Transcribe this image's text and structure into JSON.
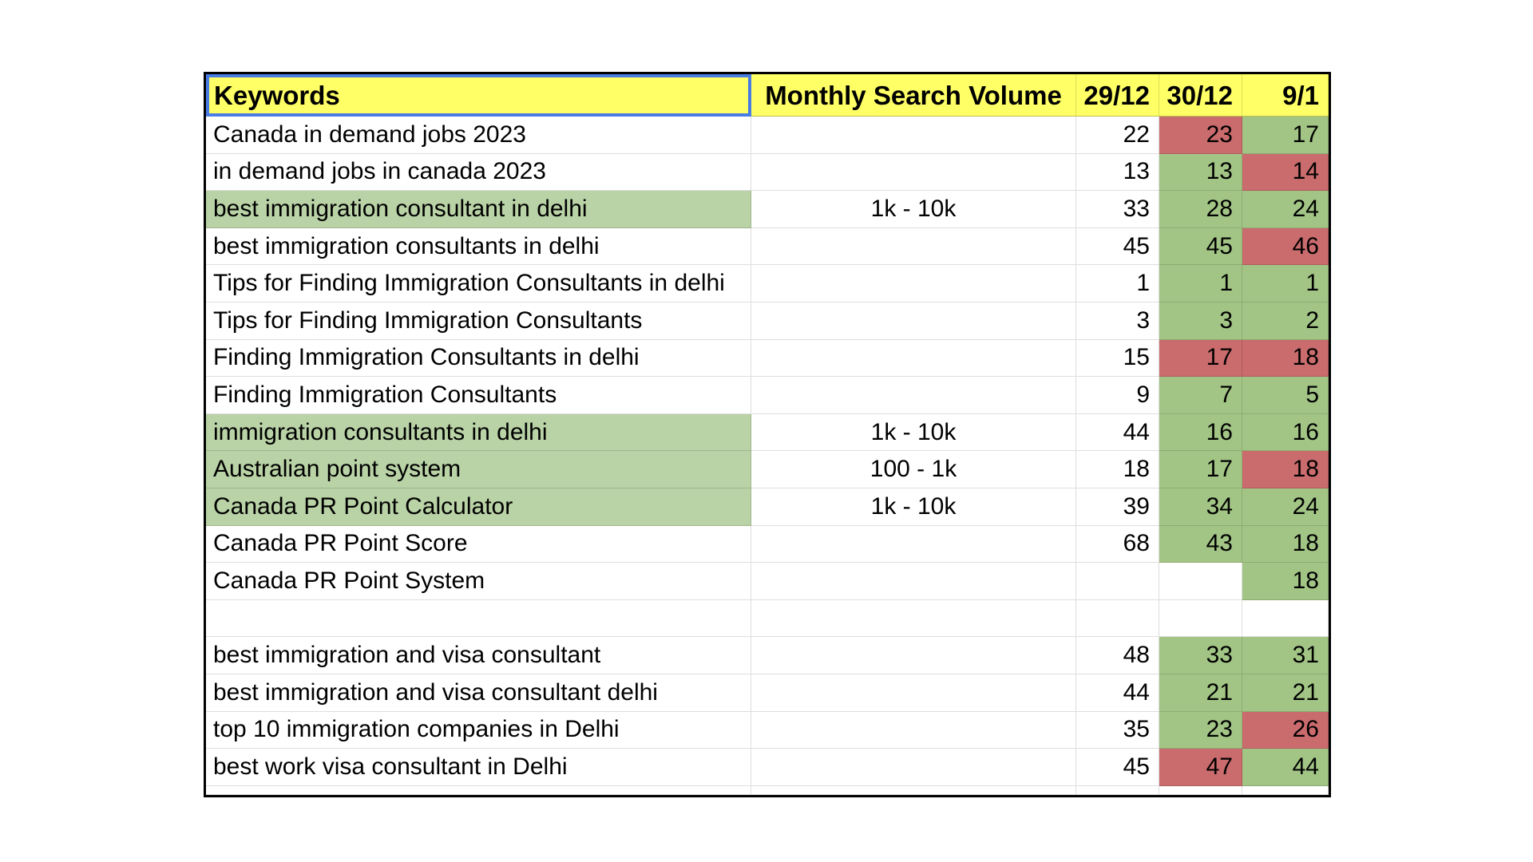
{
  "colors": {
    "header_bg": "#ffff66",
    "selection_border": "#4a7de4",
    "cell_green": "#a2c585",
    "cell_red": "#ca6b6d",
    "keyword_green": "#b9d2a6",
    "grid_line": "#dcdcdc",
    "outer_border": "#000000"
  },
  "table": {
    "headers": [
      {
        "id": "keywords",
        "label": "Keywords",
        "selected": true
      },
      {
        "id": "msv",
        "label": "Monthly Search Volume",
        "selected": false
      },
      {
        "id": "date-29-12",
        "label": "29/12",
        "selected": false
      },
      {
        "id": "date-30-12",
        "label": "30/12",
        "selected": false
      },
      {
        "id": "date-9-1",
        "label": "9/1",
        "selected": false
      }
    ],
    "rows": [
      {
        "keyword": "Canada in demand jobs 2023",
        "keyword_bg": "white",
        "msv": "",
        "values": [
          {
            "text": "22",
            "bg": "white"
          },
          {
            "text": "23",
            "bg": "red"
          },
          {
            "text": "17",
            "bg": "green"
          }
        ]
      },
      {
        "keyword": "in demand jobs in canada 2023",
        "keyword_bg": "white",
        "msv": "",
        "values": [
          {
            "text": "13",
            "bg": "white"
          },
          {
            "text": "13",
            "bg": "green"
          },
          {
            "text": "14",
            "bg": "red"
          }
        ]
      },
      {
        "keyword": "best immigration consultant in delhi",
        "keyword_bg": "green",
        "msv": "1k - 10k",
        "values": [
          {
            "text": "33",
            "bg": "white"
          },
          {
            "text": "28",
            "bg": "green"
          },
          {
            "text": "24",
            "bg": "green"
          }
        ]
      },
      {
        "keyword": "best immigration consultants in delhi",
        "keyword_bg": "white",
        "msv": "",
        "values": [
          {
            "text": "45",
            "bg": "white"
          },
          {
            "text": "45",
            "bg": "green"
          },
          {
            "text": "46",
            "bg": "red"
          }
        ]
      },
      {
        "keyword": "Tips for Finding Immigration Consultants in delhi",
        "keyword_bg": "white",
        "msv": "",
        "values": [
          {
            "text": "1",
            "bg": "white"
          },
          {
            "text": "1",
            "bg": "green"
          },
          {
            "text": "1",
            "bg": "green"
          }
        ]
      },
      {
        "keyword": "Tips for Finding Immigration Consultants",
        "keyword_bg": "white",
        "msv": "",
        "values": [
          {
            "text": "3",
            "bg": "white"
          },
          {
            "text": "3",
            "bg": "green"
          },
          {
            "text": "2",
            "bg": "green"
          }
        ]
      },
      {
        "keyword": "Finding Immigration Consultants in delhi",
        "keyword_bg": "white",
        "msv": "",
        "values": [
          {
            "text": "15",
            "bg": "white"
          },
          {
            "text": "17",
            "bg": "red"
          },
          {
            "text": "18",
            "bg": "red"
          }
        ]
      },
      {
        "keyword": "Finding Immigration Consultants",
        "keyword_bg": "white",
        "msv": "",
        "values": [
          {
            "text": "9",
            "bg": "white"
          },
          {
            "text": "7",
            "bg": "green"
          },
          {
            "text": "5",
            "bg": "green"
          }
        ]
      },
      {
        "keyword": "immigration consultants in delhi",
        "keyword_bg": "green",
        "msv": "1k - 10k",
        "values": [
          {
            "text": "44",
            "bg": "white"
          },
          {
            "text": "16",
            "bg": "green"
          },
          {
            "text": "16",
            "bg": "green"
          }
        ]
      },
      {
        "keyword": "Australian point system",
        "keyword_bg": "green",
        "msv": "100 - 1k",
        "values": [
          {
            "text": "18",
            "bg": "white"
          },
          {
            "text": "17",
            "bg": "green"
          },
          {
            "text": "18",
            "bg": "red"
          }
        ]
      },
      {
        "keyword": "Canada PR Point Calculator",
        "keyword_bg": "green",
        "msv": "1k - 10k",
        "values": [
          {
            "text": "39",
            "bg": "white"
          },
          {
            "text": "34",
            "bg": "green"
          },
          {
            "text": "24",
            "bg": "green"
          }
        ]
      },
      {
        "keyword": "Canada PR Point Score",
        "keyword_bg": "white",
        "msv": "",
        "values": [
          {
            "text": "68",
            "bg": "white"
          },
          {
            "text": "43",
            "bg": "green"
          },
          {
            "text": "18",
            "bg": "green"
          }
        ]
      },
      {
        "keyword": "Canada PR Point System",
        "keyword_bg": "white",
        "msv": "",
        "values": [
          {
            "text": "",
            "bg": "white"
          },
          {
            "text": "",
            "bg": "white"
          },
          {
            "text": "18",
            "bg": "green"
          }
        ]
      },
      {
        "keyword": "",
        "keyword_bg": "white",
        "msv": "",
        "values": [
          {
            "text": "",
            "bg": "white"
          },
          {
            "text": "",
            "bg": "white"
          },
          {
            "text": "",
            "bg": "white"
          }
        ]
      },
      {
        "keyword": "best immigration and visa consultant",
        "keyword_bg": "white",
        "msv": "",
        "values": [
          {
            "text": "48",
            "bg": "white"
          },
          {
            "text": "33",
            "bg": "green"
          },
          {
            "text": "31",
            "bg": "green"
          }
        ]
      },
      {
        "keyword": "best immigration and visa consultant delhi",
        "keyword_bg": "white",
        "msv": "",
        "values": [
          {
            "text": "44",
            "bg": "white"
          },
          {
            "text": "21",
            "bg": "green"
          },
          {
            "text": "21",
            "bg": "green"
          }
        ]
      },
      {
        "keyword": "top 10 immigration companies in Delhi",
        "keyword_bg": "white",
        "msv": "",
        "values": [
          {
            "text": "35",
            "bg": "white"
          },
          {
            "text": "23",
            "bg": "green"
          },
          {
            "text": "26",
            "bg": "red"
          }
        ]
      },
      {
        "keyword": "best work visa consultant in Delhi",
        "keyword_bg": "white",
        "msv": "",
        "values": [
          {
            "text": "45",
            "bg": "white"
          },
          {
            "text": "47",
            "bg": "red"
          },
          {
            "text": "44",
            "bg": "green"
          }
        ]
      }
    ]
  }
}
